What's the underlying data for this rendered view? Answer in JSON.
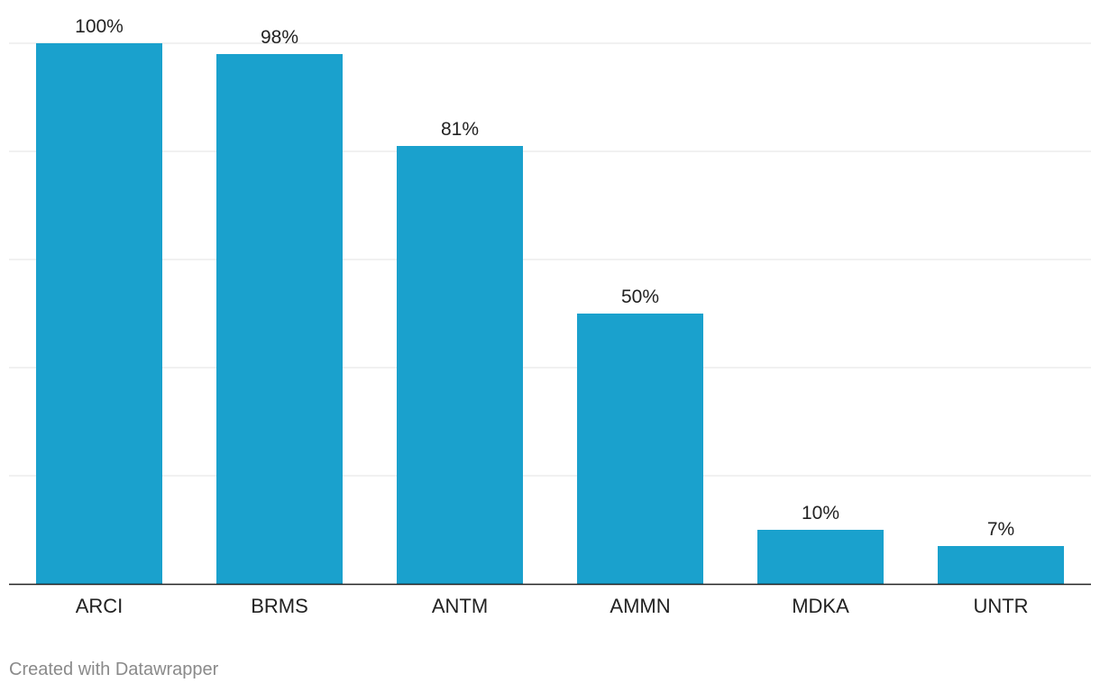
{
  "chart_data": {
    "type": "bar",
    "categories": [
      "ARCI",
      "BRMS",
      "ANTM",
      "AMMN",
      "MDKA",
      "UNTR"
    ],
    "values": [
      100,
      98,
      81,
      50,
      10,
      7
    ],
    "value_labels": [
      "100%",
      "98%",
      "81%",
      "50%",
      "10%",
      "7%"
    ],
    "title": "",
    "xlabel": "",
    "ylabel": "",
    "ylim": [
      0,
      100
    ],
    "gridlines": [
      0,
      20,
      40,
      60,
      80,
      100
    ],
    "grid": true,
    "bar_color": "#1aa1cd"
  },
  "footer": {
    "credit": "Created with Datawrapper"
  },
  "colors": {
    "bar": "#1aa1cd",
    "grid": "#e3e3e3",
    "axis": "#222222",
    "footer_text": "#8a8a8a"
  }
}
